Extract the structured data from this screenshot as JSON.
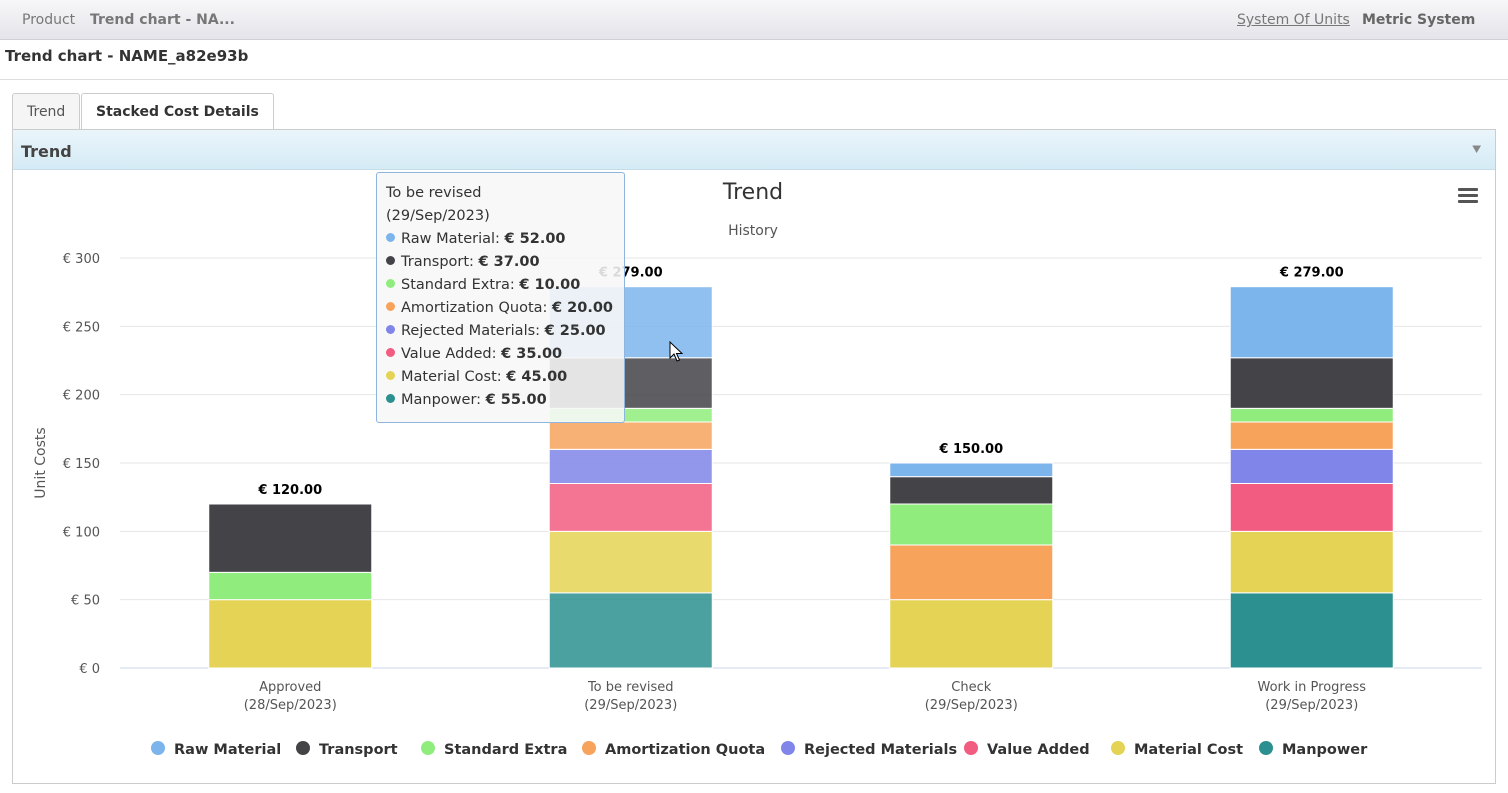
{
  "breadcrumb": {
    "root": "Product",
    "current": "Trend chart - NA..."
  },
  "topbar": {
    "system_link": "System Of Units",
    "system_value": "Metric System"
  },
  "page": {
    "title": "Trend chart - NAME_a82e93b"
  },
  "tabs": [
    {
      "label": "Trend",
      "active": false
    },
    {
      "label": "Stacked Cost Details",
      "active": true
    }
  ],
  "panel": {
    "title": "Trend",
    "toggle_icon": "double-chevron-down-icon",
    "menu_icon": "hamburger-menu-icon"
  },
  "chart_data": {
    "type": "bar",
    "stacked": true,
    "title": "Trend",
    "subtitle": "History",
    "ylabel": "Unit Costs",
    "xlabel": "",
    "ylim": [
      0,
      300
    ],
    "yticks": [
      "€ 0",
      "€ 50",
      "€ 100",
      "€ 150",
      "€ 200",
      "€ 250",
      "€ 300"
    ],
    "ytick_values": [
      0,
      50,
      100,
      150,
      200,
      250,
      300
    ],
    "categories": [
      {
        "name": "Approved",
        "date": "(28/Sep/2023)"
      },
      {
        "name": "To be revised",
        "date": "(29/Sep/2023)"
      },
      {
        "name": "Check",
        "date": "(29/Sep/2023)"
      },
      {
        "name": "Work in Progress",
        "date": "(29/Sep/2023)"
      }
    ],
    "totals": [
      "€ 120.00",
      "€ 279.00",
      "€ 150.00",
      "€ 279.00"
    ],
    "legend_position": "bottom",
    "series": [
      {
        "name": "Raw Material",
        "color": "#7cb5ec",
        "values": [
          0,
          52,
          10,
          52
        ]
      },
      {
        "name": "Transport",
        "color": "#434348",
        "values": [
          50,
          37,
          20,
          37
        ]
      },
      {
        "name": "Standard Extra",
        "color": "#90ed7d",
        "values": [
          20,
          10,
          30,
          10
        ]
      },
      {
        "name": "Amortization Quota",
        "color": "#f7a35c",
        "values": [
          0,
          20,
          40,
          20
        ]
      },
      {
        "name": "Rejected Materials",
        "color": "#8085e9",
        "values": [
          0,
          25,
          0,
          25
        ]
      },
      {
        "name": "Value Added",
        "color": "#f15c80",
        "values": [
          0,
          35,
          0,
          35
        ]
      },
      {
        "name": "Material Cost",
        "color": "#e4d354",
        "values": [
          50,
          45,
          50,
          45
        ]
      },
      {
        "name": "Manpower",
        "color": "#2b908f",
        "values": [
          0,
          55,
          0,
          55
        ]
      }
    ],
    "hover_index": 1
  },
  "tooltip": {
    "title": "To be revised",
    "date": "(29/Sep/2023)",
    "rows": [
      {
        "label": "Raw Material:",
        "value": "€ 52.00",
        "color": "#7cb5ec"
      },
      {
        "label": "Transport:",
        "value": "€ 37.00",
        "color": "#434348"
      },
      {
        "label": "Standard Extra:",
        "value": "€ 10.00",
        "color": "#90ed7d"
      },
      {
        "label": "Amortization Quota:",
        "value": "€ 20.00",
        "color": "#f7a35c"
      },
      {
        "label": "Rejected Materials:",
        "value": "€ 25.00",
        "color": "#8085e9"
      },
      {
        "label": "Value Added:",
        "value": "€ 35.00",
        "color": "#f15c80"
      },
      {
        "label": "Material Cost:",
        "value": "€ 45.00",
        "color": "#e4d354"
      },
      {
        "label": "Manpower:",
        "value": "€ 55.00",
        "color": "#2b908f"
      }
    ]
  }
}
